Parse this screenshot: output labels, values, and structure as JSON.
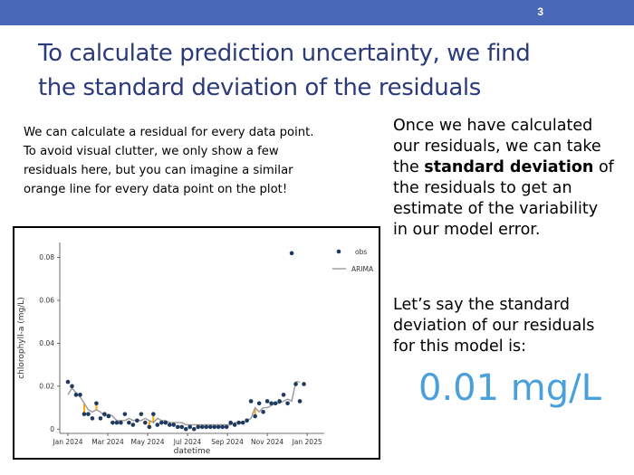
{
  "slide": {
    "page_number": "3",
    "title_lines": [
      "To calculate prediction uncertainty, we find",
      "the standard deviation of the residuals"
    ],
    "left_lines": [
      "We can calculate a residual for every data point.",
      "To avoid visual clutter, we only show a few",
      "residuals here, but you can imagine a similar",
      "orange line for every data point on the plot!"
    ],
    "right_block1": {
      "line1": "Once we have calculated",
      "line2": "our residuals, we can take",
      "line3_pre": "the ",
      "line3_bold": "standard deviation",
      "line3_post": " of",
      "line4": "the residuals to get an",
      "line5": "estimate of the variability",
      "line6": "in our model error."
    },
    "right_block2_lines": [
      "Let’s say the standard",
      "deviation of our residuals",
      "for this model is:"
    ],
    "big_value": "0.01 mg/L"
  },
  "colors": {
    "topbar": "#4a68b8",
    "title": "#2b3a7a",
    "obs": "#1f3a5f",
    "arima": "#999999",
    "residual": "#ffa500",
    "big_value": "#4aa0dc"
  },
  "chart_data": {
    "type": "scatter",
    "xlabel": "datetime",
    "ylabel": "chlorophyll-a (mg/L)",
    "xticks": [
      "Jan 2024",
      "Mar 2024",
      "May 2024",
      "Jul 2024",
      "Sep 2024",
      "Nov 2024",
      "Jan 2025"
    ],
    "xlim": [
      -2,
      63
    ],
    "ylim": [
      -0.002,
      0.087
    ],
    "yticks": [
      0,
      0.02,
      0.04,
      0.06,
      0.08
    ],
    "ytick_labels": [
      "0",
      "0.02",
      "0.04",
      "0.06",
      "0.08"
    ],
    "legend": {
      "placement": "top-right",
      "entries": [
        "obs",
        "ARIMA"
      ]
    },
    "series": [
      {
        "name": "obs",
        "kind": "points",
        "x": [
          0,
          1,
          2,
          3,
          4,
          5,
          6,
          7,
          8,
          9,
          10,
          11,
          12,
          13,
          14,
          15,
          16,
          17,
          18,
          19,
          20,
          21,
          22,
          23,
          24,
          25,
          26,
          27,
          28,
          29,
          30,
          31,
          32,
          33,
          34,
          35,
          36,
          37,
          38,
          39,
          40,
          41,
          42,
          43,
          44,
          45,
          46,
          47,
          48,
          49,
          50,
          51,
          52,
          53,
          54,
          55,
          56,
          57,
          58
        ],
        "y": [
          0.022,
          0.02,
          0.016,
          0.016,
          0.007,
          0.007,
          0.005,
          0.012,
          0.005,
          0.007,
          0.006,
          0.003,
          0.003,
          0.003,
          0.007,
          0.003,
          0.002,
          0.004,
          0.007,
          0.003,
          0.001,
          0.007,
          0.002,
          0.003,
          0.003,
          0.002,
          0.002,
          0.001,
          0.001,
          0.0,
          0.001,
          0.0,
          0.001,
          0.001,
          0.001,
          0.001,
          0.001,
          0.001,
          0.001,
          0.001,
          0.003,
          0.002,
          0.003,
          0.003,
          0.004,
          0.013,
          0.006,
          0.012,
          0.008,
          0.013,
          0.012,
          0.012,
          0.013,
          0.016,
          0.012,
          0.082,
          0.021,
          0.013,
          0.021
        ]
      },
      {
        "name": "ARIMA",
        "kind": "line",
        "x": [
          0,
          1,
          2,
          3,
          4,
          5,
          6,
          7,
          8,
          9,
          10,
          11,
          12,
          13,
          14,
          15,
          16,
          17,
          18,
          19,
          20,
          21,
          22,
          23,
          24,
          25,
          26,
          27,
          28,
          29,
          30,
          31,
          32,
          33,
          34,
          35,
          36,
          37,
          38,
          39,
          40,
          41,
          42,
          43,
          44,
          45,
          46,
          47,
          48,
          49,
          50,
          51,
          52,
          53,
          54,
          55,
          56,
          57
        ],
        "y": [
          0.016,
          0.019,
          0.017,
          0.015,
          0.012,
          0.009,
          0.008,
          0.009,
          0.008,
          0.006,
          0.007,
          0.006,
          0.004,
          0.004,
          0.004,
          0.005,
          0.004,
          0.004,
          0.004,
          0.005,
          0.004,
          0.003,
          0.005,
          0.004,
          0.004,
          0.003,
          0.003,
          0.003,
          0.003,
          0.002,
          0.002,
          0.002,
          0.002,
          0.002,
          0.002,
          0.002,
          0.002,
          0.002,
          0.002,
          0.002,
          0.002,
          0.003,
          0.003,
          0.003,
          0.004,
          0.005,
          0.01,
          0.008,
          0.01,
          0.01,
          0.011,
          0.012,
          0.012,
          0.013,
          0.014,
          0.013,
          0.022,
          0.022
        ]
      }
    ],
    "residuals": [
      {
        "x": 4,
        "y_obs": 0.007,
        "y_model": 0.012
      },
      {
        "x": 7,
        "y_obs": 0.012,
        "y_model": 0.009
      },
      {
        "x": 20,
        "y_obs": 0.001,
        "y_model": 0.004
      },
      {
        "x": 21,
        "y_obs": 0.007,
        "y_model": 0.003
      },
      {
        "x": 46,
        "y_obs": 0.006,
        "y_model": 0.01
      }
    ]
  }
}
